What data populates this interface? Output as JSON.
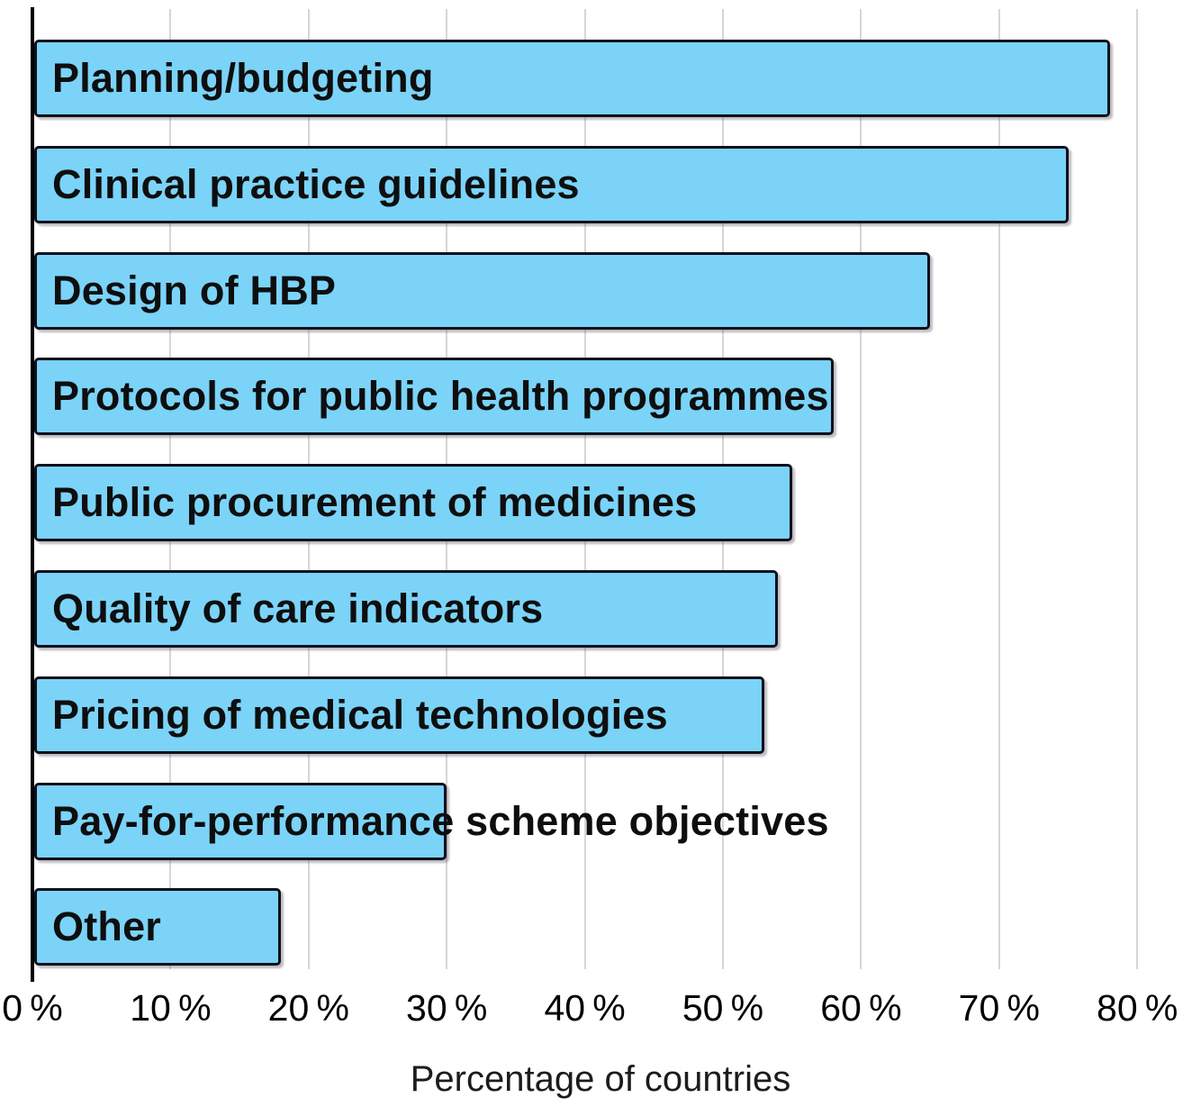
{
  "chart_data": {
    "type": "bar",
    "orientation": "horizontal",
    "xlabel": "Percentage of countries",
    "categories": [
      "Planning/budgeting",
      "Clinical practice guidelines",
      "Design of HBP",
      "Protocols for public health programmes",
      "Public procurement of medicines",
      "Quality of care indicators",
      "Pricing of medical technologies",
      "Pay-for-performance scheme objectives",
      "Other"
    ],
    "values": [
      78,
      75,
      65,
      58,
      55,
      54,
      53,
      30,
      18
    ],
    "xlim": [
      0,
      80
    ],
    "ticks": [
      {
        "value": 0,
        "label": "0 %"
      },
      {
        "value": 10,
        "label": "10 %"
      },
      {
        "value": 20,
        "label": "20 %"
      },
      {
        "value": 30,
        "label": "30 %"
      },
      {
        "value": 40,
        "label": "40 %"
      },
      {
        "value": 50,
        "label": "50 %"
      },
      {
        "value": 60,
        "label": "60 %"
      },
      {
        "value": 70,
        "label": "70 %"
      },
      {
        "value": 80,
        "label": "80 %"
      }
    ],
    "grid": "vertical",
    "legend": "none",
    "colors": {
      "bar_fill": "#7bd3f8",
      "bar_border": "#10101c",
      "gridline": "#d6d6d6",
      "axis": "#000000",
      "text": "#0e0e0e"
    }
  }
}
